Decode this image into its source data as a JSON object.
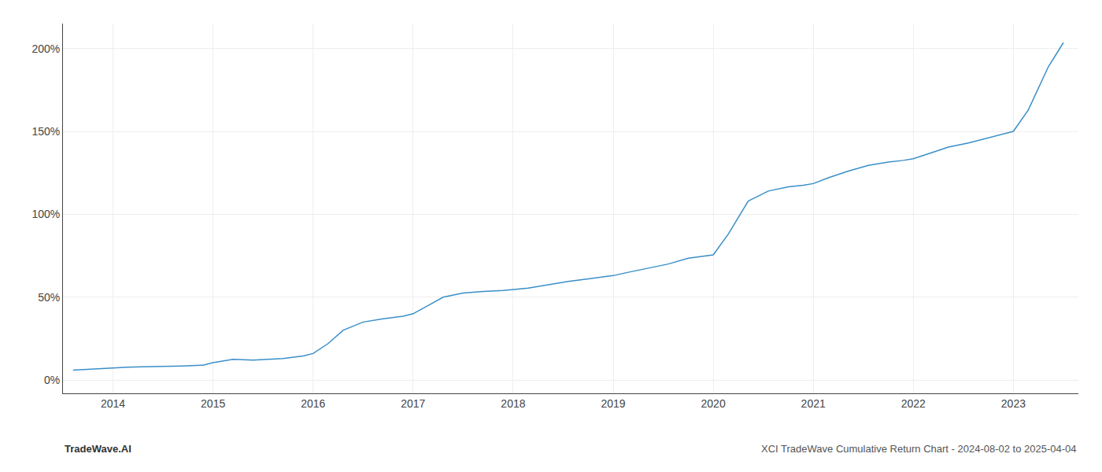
{
  "chart_data": {
    "type": "line",
    "title": "XCI TradeWave Cumulative Return Chart - 2024-08-02 to 2025-04-04",
    "annotations": [
      "TradeWave.AI"
    ],
    "color": "#3a8fc8",
    "x": [
      2013.6,
      2014.0,
      2014.15,
      2014.3,
      2014.5,
      2014.7,
      2014.9,
      2015.0,
      2015.2,
      2015.4,
      2015.55,
      2015.7,
      2015.9,
      2016.0,
      2016.15,
      2016.3,
      2016.5,
      2016.7,
      2016.9,
      2017.0,
      2017.15,
      2017.3,
      2017.5,
      2017.7,
      2017.9,
      2018.0,
      2018.15,
      2018.35,
      2018.55,
      2018.75,
      2018.9,
      2019.0,
      2019.15,
      2019.35,
      2019.55,
      2019.75,
      2019.9,
      2020.0,
      2020.15,
      2020.35,
      2020.55,
      2020.75,
      2020.9,
      2021.0,
      2021.15,
      2021.35,
      2021.55,
      2021.75,
      2021.9,
      2022.0,
      2022.15,
      2022.35,
      2022.55,
      2022.75,
      2022.9,
      2023.0,
      2023.15,
      2023.35,
      2023.5
    ],
    "values": [
      6.0,
      7.5,
      7.8,
      8.0,
      8.2,
      8.5,
      9.0,
      10.5,
      12.5,
      12.0,
      12.5,
      13.0,
      14.5,
      16.0,
      22.0,
      30.0,
      35.0,
      37.0,
      38.5,
      40.0,
      45.0,
      50.0,
      52.5,
      53.5,
      54.0,
      54.5,
      55.5,
      57.5,
      59.5,
      61.0,
      62.0,
      63.0,
      65.0,
      67.5,
      70.0,
      73.5,
      74.5,
      75.5,
      88.0,
      108.0,
      114.0,
      116.5,
      117.5,
      118.5,
      122.0,
      126.0,
      129.5,
      131.5,
      132.5,
      133.5,
      136.5,
      140.5,
      143.0,
      146.0,
      148.5,
      150.0,
      163.0,
      189.0,
      203.5
    ],
    "xlim": [
      2013.5,
      2023.65
    ],
    "xticks": [
      2014,
      2015,
      2016,
      2017,
      2018,
      2019,
      2020,
      2021,
      2022,
      2023
    ],
    "ylim": [
      -8,
      215
    ],
    "yticks": [
      {
        "value": 0,
        "label": "0%"
      },
      {
        "value": 50,
        "label": "50%"
      },
      {
        "value": 100,
        "label": "100%"
      },
      {
        "value": 150,
        "label": "150%"
      },
      {
        "value": 200,
        "label": "200%"
      }
    ],
    "grid": true
  }
}
